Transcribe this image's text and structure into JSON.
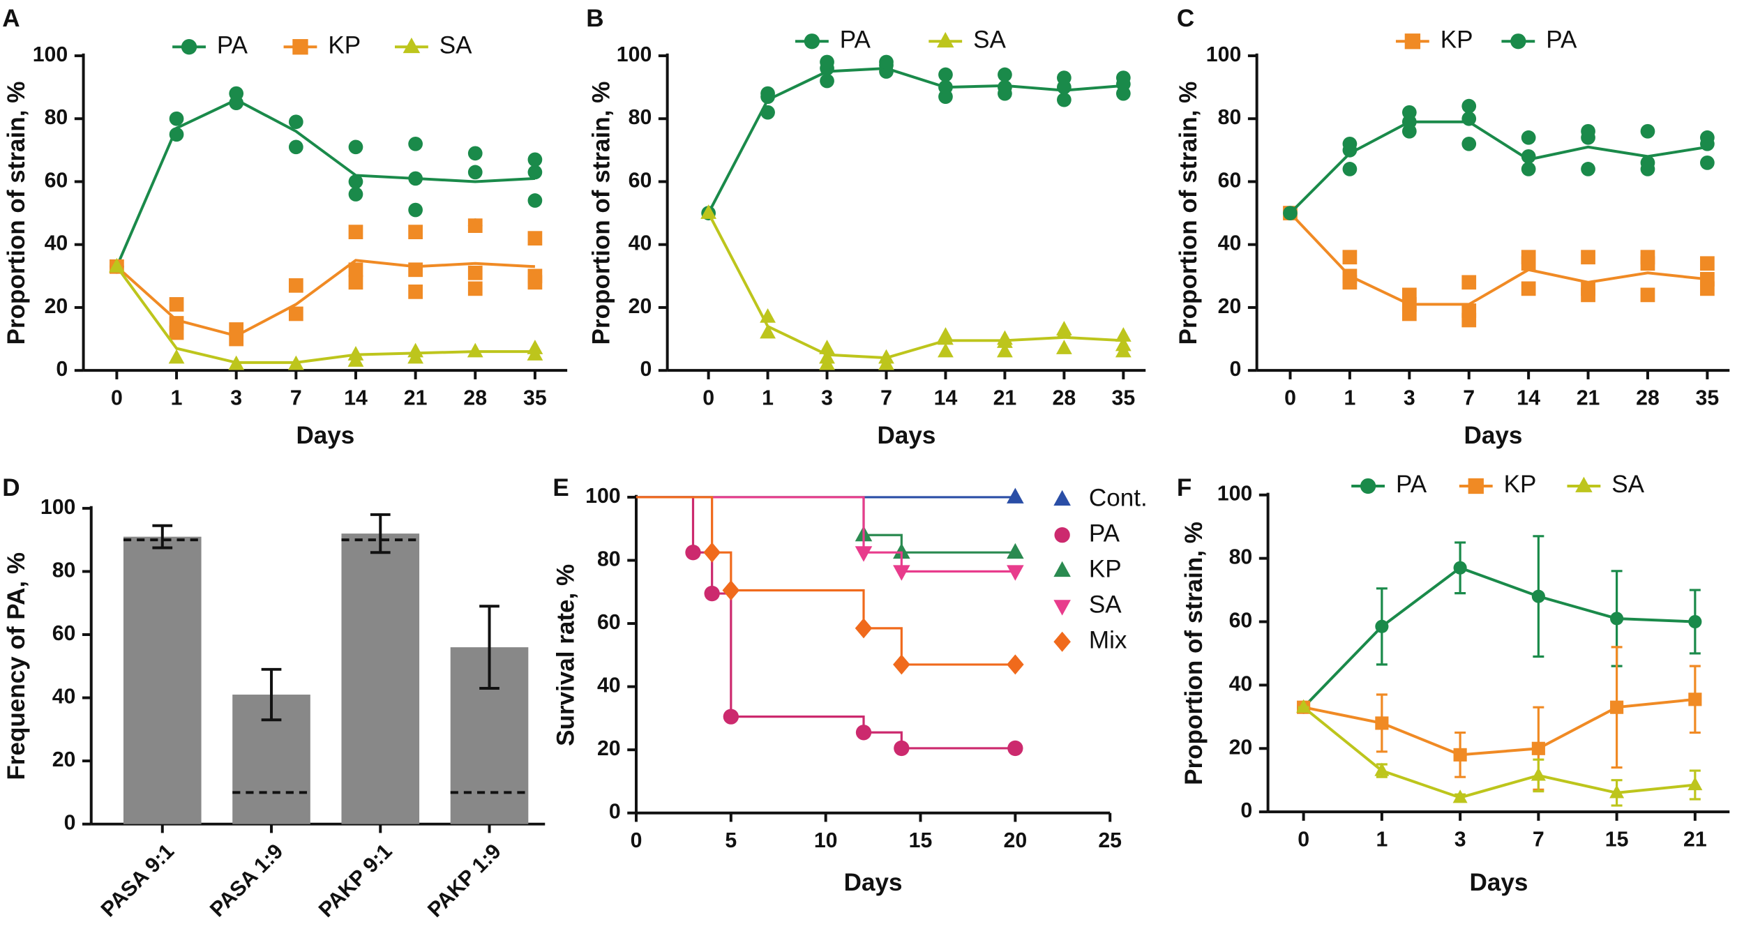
{
  "chart_data": [
    {
      "type": "line",
      "panel": "A",
      "ylabel": "Proportion of strain, %",
      "xlabel": "Days",
      "categories": [
        "0",
        "1",
        "3",
        "7",
        "14",
        "21",
        "28",
        "35"
      ],
      "ylim": [
        0,
        100
      ],
      "yticks": [
        0,
        20,
        40,
        60,
        80,
        100
      ],
      "series": [
        {
          "name": "PA",
          "color": "#1a8a4a",
          "marker": "circle",
          "values": [
            33,
            77,
            86,
            76,
            62,
            61,
            60,
            61
          ],
          "replicates": [
            [
              33
            ],
            [
              75,
              80
            ],
            [
              85,
              88
            ],
            [
              71,
              79
            ],
            [
              56,
              60,
              71
            ],
            [
              51,
              61,
              72
            ],
            [
              46,
              63,
              69
            ],
            [
              54,
              63,
              67
            ]
          ]
        },
        {
          "name": "KP",
          "color": "#f08a24",
          "marker": "square",
          "values": [
            33,
            16,
            11,
            21,
            35,
            33,
            34,
            33
          ],
          "replicates": [
            [
              33
            ],
            [
              12,
              15,
              21
            ],
            [
              10,
              13
            ],
            [
              18,
              27
            ],
            [
              28,
              32,
              44
            ],
            [
              25,
              32,
              44
            ],
            [
              26,
              31,
              46
            ],
            [
              28,
              30,
              42
            ]
          ]
        },
        {
          "name": "SA",
          "color": "#bdc51c",
          "marker": "triangle",
          "values": [
            33,
            7,
            2.5,
            2.5,
            5,
            5.5,
            6,
            6
          ],
          "replicates": [
            [
              33
            ],
            [
              4
            ],
            [
              2
            ],
            [
              2
            ],
            [
              3,
              5
            ],
            [
              4,
              6
            ],
            [
              6
            ],
            [
              5,
              7
            ]
          ]
        }
      ]
    },
    {
      "type": "line",
      "panel": "B",
      "ylabel": "Proportion of strain, %",
      "xlabel": "Days",
      "categories": [
        "0",
        "1",
        "3",
        "7",
        "14",
        "21",
        "28",
        "35"
      ],
      "ylim": [
        0,
        100
      ],
      "yticks": [
        0,
        20,
        40,
        60,
        80,
        100
      ],
      "series": [
        {
          "name": "PA",
          "color": "#1a8a4a",
          "marker": "circle",
          "values": [
            50,
            86,
            95,
            96,
            90,
            90.5,
            89,
            90.5
          ],
          "replicates": [
            [
              50
            ],
            [
              82,
              87,
              88
            ],
            [
              92,
              96,
              98
            ],
            [
              95,
              97,
              98
            ],
            [
              87,
              90,
              94
            ],
            [
              88,
              90,
              94
            ],
            [
              86,
              90,
              93
            ],
            [
              88,
              91,
              93
            ]
          ]
        },
        {
          "name": "SA",
          "color": "#bdc51c",
          "marker": "triangle",
          "values": [
            50,
            14,
            5,
            4,
            9.5,
            9.5,
            10.5,
            9.5
          ],
          "replicates": [
            [
              50
            ],
            [
              12,
              17
            ],
            [
              2,
              4,
              7
            ],
            [
              2,
              4
            ],
            [
              6,
              10,
              11
            ],
            [
              6,
              9,
              10
            ],
            [
              7,
              12,
              13
            ],
            [
              6,
              8,
              11
            ]
          ]
        }
      ]
    },
    {
      "type": "line",
      "panel": "C",
      "ylabel": "Proportion of strain, %",
      "xlabel": "Days",
      "categories": [
        "0",
        "1",
        "3",
        "7",
        "14",
        "21",
        "28",
        "35"
      ],
      "ylim": [
        0,
        100
      ],
      "yticks": [
        0,
        20,
        40,
        60,
        80,
        100
      ],
      "series": [
        {
          "name": "KP",
          "color": "#f08a24",
          "marker": "square",
          "values": [
            50,
            30,
            21,
            21,
            32,
            28,
            31,
            29
          ],
          "replicates": [
            [
              50
            ],
            [
              28,
              30,
              36
            ],
            [
              18,
              21,
              24
            ],
            [
              16,
              19,
              28
            ],
            [
              26,
              34,
              36
            ],
            [
              24,
              26,
              36
            ],
            [
              24,
              34,
              36
            ],
            [
              26,
              29,
              34
            ]
          ]
        },
        {
          "name": "PA",
          "color": "#1a8a4a",
          "marker": "circle",
          "values": [
            50,
            69,
            79,
            79,
            67,
            71,
            68,
            71
          ],
          "replicates": [
            [
              50
            ],
            [
              64,
              70,
              72
            ],
            [
              76,
              79,
              82
            ],
            [
              72,
              80,
              84
            ],
            [
              64,
              68,
              74
            ],
            [
              64,
              74,
              76
            ],
            [
              64,
              66,
              76
            ],
            [
              66,
              72,
              74
            ]
          ]
        }
      ]
    },
    {
      "type": "bar",
      "panel": "D",
      "ylabel": "Frequency of PA, %",
      "categories": [
        "PASA 9:1",
        "PASA 1:9",
        "PAKP 9:1",
        "PAKP 1:9"
      ],
      "values": [
        91,
        41,
        92,
        56
      ],
      "errors": [
        3.5,
        8,
        6,
        13
      ],
      "expected": [
        90,
        10,
        90,
        10
      ],
      "color": "#888888",
      "ylim": [
        0,
        100
      ],
      "yticks": [
        0,
        20,
        40,
        60,
        80,
        100
      ]
    },
    {
      "type": "step",
      "panel": "E",
      "ylabel": "Survival rate, %",
      "xlabel": "Days",
      "xlim": [
        0,
        25
      ],
      "xticks": [
        0,
        5,
        10,
        15,
        20,
        25
      ],
      "ylim": [
        0,
        100
      ],
      "yticks": [
        0,
        20,
        40,
        60,
        80,
        100
      ],
      "series": [
        {
          "name": "Cont.",
          "color": "#2a4ea6",
          "marker": "triangle",
          "x": [
            0,
            20
          ],
          "values": [
            100,
            100
          ]
        },
        {
          "name": "PA",
          "color": "#cc2a6e",
          "marker": "circle",
          "x": [
            0,
            3,
            4,
            5,
            12,
            14,
            20
          ],
          "values": [
            100,
            82.5,
            69.5,
            30.5,
            25.5,
            20.5,
            20.5
          ]
        },
        {
          "name": "KP",
          "color": "#2a8a50",
          "marker": "triangle",
          "x": [
            0,
            12,
            14,
            20
          ],
          "values": [
            100,
            88,
            82.5,
            82.5
          ]
        },
        {
          "name": "SA",
          "color": "#e83c8c",
          "marker": "triangle-down",
          "x": [
            0,
            12,
            14,
            20
          ],
          "values": [
            100,
            82.5,
            76.5,
            76.5
          ]
        },
        {
          "name": "Mix",
          "color": "#f06a1c",
          "marker": "diamond",
          "x": [
            0,
            4,
            5,
            12,
            14,
            20
          ],
          "values": [
            100,
            82.5,
            70.5,
            58.5,
            47,
            47
          ]
        }
      ]
    },
    {
      "type": "errorline",
      "panel": "F",
      "ylabel": "Proportion of strain, %",
      "xlabel": "Days",
      "categories": [
        "0",
        "1",
        "3",
        "7",
        "15",
        "21"
      ],
      "ylim": [
        0,
        100
      ],
      "yticks": [
        0,
        20,
        40,
        60,
        80,
        100
      ],
      "series": [
        {
          "name": "PA",
          "color": "#1a8a4a",
          "marker": "circle",
          "values": [
            33,
            58.5,
            77,
            68,
            61,
            60
          ],
          "errors": [
            0,
            12,
            8,
            19,
            15,
            10
          ]
        },
        {
          "name": "KP",
          "color": "#f08a24",
          "marker": "square",
          "values": [
            33,
            28,
            18,
            20,
            33,
            35.5
          ],
          "errors": [
            0,
            9,
            7,
            13,
            19,
            10.5
          ]
        },
        {
          "name": "SA",
          "color": "#bdc51c",
          "marker": "triangle",
          "values": [
            33,
            13,
            4.5,
            11.5,
            6,
            8.5
          ],
          "errors": [
            0,
            2,
            1,
            5,
            4,
            4.5
          ]
        }
      ]
    }
  ]
}
